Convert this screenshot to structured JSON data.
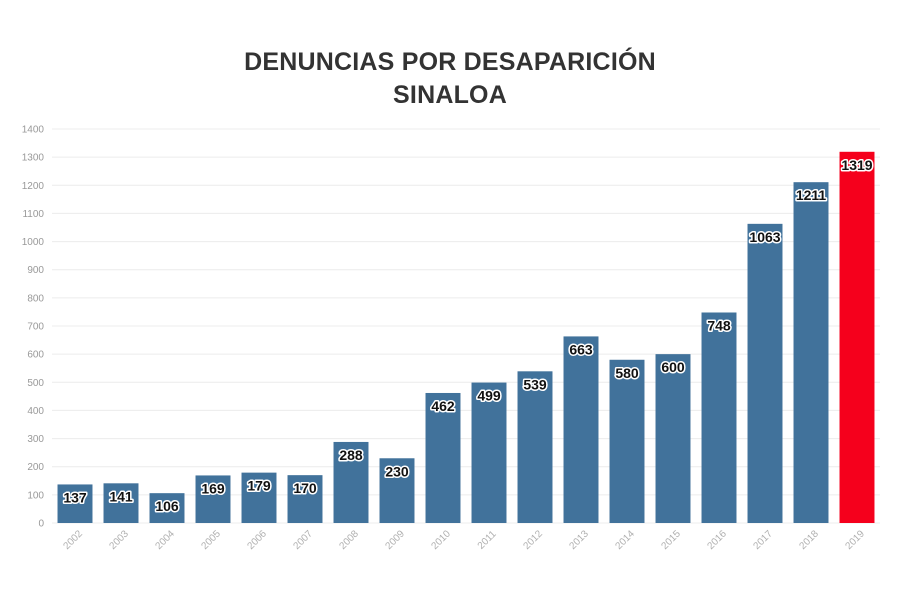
{
  "title": {
    "line1": "DENUNCIAS POR DESAPARICIÓN",
    "line2": "SINALOA"
  },
  "colors": {
    "bar": "#41729b",
    "highlight": "#f5001c",
    "grid": "#ececec",
    "axis_text": "#999999"
  },
  "chart_data": {
    "type": "bar",
    "title": "DENUNCIAS POR DESAPARICIÓN SINALOA",
    "xlabel": "",
    "ylabel": "",
    "categories": [
      "2002",
      "2003",
      "2004",
      "2005",
      "2006",
      "2007",
      "2008",
      "2009",
      "2010",
      "2011",
      "2012",
      "2013",
      "2014",
      "2015",
      "2016",
      "2017",
      "2018",
      "2019"
    ],
    "values": [
      137,
      141,
      106,
      169,
      179,
      170,
      288,
      230,
      462,
      499,
      539,
      663,
      580,
      600,
      748,
      1063,
      1211,
      1319
    ],
    "ylim": [
      0,
      1400
    ],
    "yticks": [
      0,
      100,
      200,
      300,
      400,
      500,
      600,
      700,
      800,
      900,
      1000,
      1100,
      1200,
      1300,
      1400
    ],
    "highlight_category": "2019",
    "grid": true,
    "legend": "none"
  }
}
